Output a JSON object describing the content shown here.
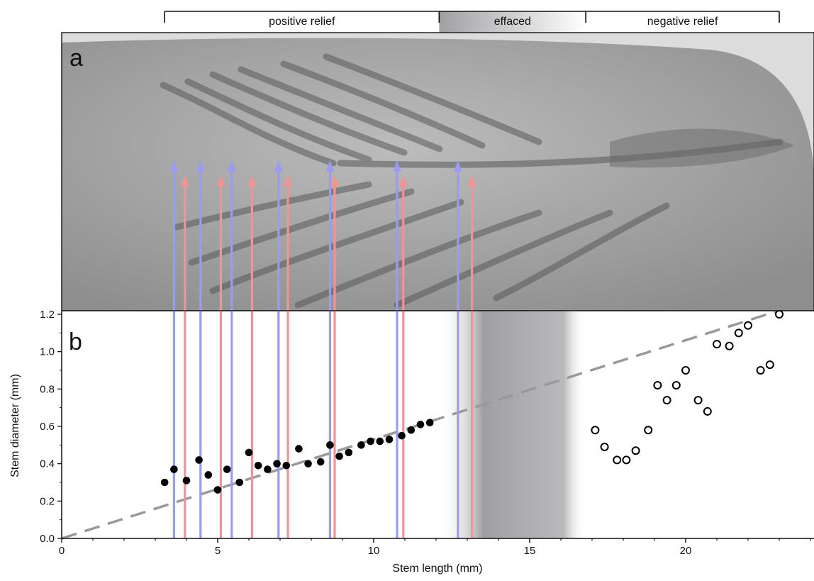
{
  "regions": [
    {
      "label": "positive relief",
      "x0": 3.3,
      "x1": 12.1
    },
    {
      "label": "effaced",
      "x0": 12.1,
      "x1": 16.8
    },
    {
      "label": "negative relief",
      "x0": 16.8,
      "x1": 23.0
    }
  ],
  "panel_a": {
    "letter": "a"
  },
  "photo_colors": {
    "light": "#d9d9d9",
    "mid": "#a6a6a6",
    "dark": "#5e5e5e"
  },
  "arrows": {
    "blue_color": "#9b9cf0",
    "red_color": "#f09494",
    "blue_x": [
      3.6,
      4.45,
      5.45,
      6.95,
      8.6,
      10.75,
      12.7
    ],
    "red_x": [
      3.95,
      5.1,
      6.1,
      7.25,
      8.75,
      10.95,
      13.15
    ]
  },
  "chart_data": {
    "type": "scatter",
    "panel_letter": "b",
    "xlabel": "Stem length (mm)",
    "ylabel": "Stem diameter (mm)",
    "xlim": [
      0,
      24
    ],
    "ylim": [
      0,
      1.2
    ],
    "xticks": [
      0,
      5,
      10,
      15,
      20
    ],
    "yticks": [
      0.0,
      0.2,
      0.4,
      0.6,
      0.8,
      1.0,
      1.2
    ],
    "xtick_labels": [
      "0",
      "5",
      "10",
      "15",
      "20"
    ],
    "ytick_labels": [
      "0.0",
      "0.2",
      "0.4",
      "0.6",
      "0.8",
      "1.0",
      "1.2"
    ],
    "shaded_region": {
      "x0": 12.1,
      "x1": 16.8,
      "color": "#9a9a9d"
    },
    "trend_line": {
      "x": [
        0,
        23
      ],
      "y": [
        0.0,
        1.22
      ],
      "style": "dashed",
      "color": "#999999"
    },
    "series": [
      {
        "marker": "filled-circle",
        "color": "#000000",
        "points": [
          [
            3.3,
            0.3
          ],
          [
            3.6,
            0.37
          ],
          [
            4.0,
            0.31
          ],
          [
            4.4,
            0.42
          ],
          [
            4.7,
            0.34
          ],
          [
            5.0,
            0.26
          ],
          [
            5.3,
            0.37
          ],
          [
            5.7,
            0.3
          ],
          [
            6.0,
            0.46
          ],
          [
            6.3,
            0.39
          ],
          [
            6.6,
            0.37
          ],
          [
            6.9,
            0.4
          ],
          [
            7.2,
            0.39
          ],
          [
            7.6,
            0.48
          ],
          [
            7.9,
            0.4
          ],
          [
            8.3,
            0.41
          ],
          [
            8.6,
            0.5
          ],
          [
            8.9,
            0.44
          ],
          [
            9.2,
            0.46
          ],
          [
            9.6,
            0.5
          ],
          [
            9.9,
            0.52
          ],
          [
            10.2,
            0.52
          ],
          [
            10.5,
            0.53
          ],
          [
            10.9,
            0.55
          ],
          [
            11.2,
            0.58
          ],
          [
            11.5,
            0.61
          ],
          [
            11.8,
            0.62
          ]
        ]
      },
      {
        "marker": "open-circle",
        "color": "#000000",
        "points": [
          [
            17.1,
            0.58
          ],
          [
            17.4,
            0.49
          ],
          [
            17.8,
            0.42
          ],
          [
            18.1,
            0.42
          ],
          [
            18.4,
            0.47
          ],
          [
            18.8,
            0.58
          ],
          [
            19.1,
            0.82
          ],
          [
            19.4,
            0.74
          ],
          [
            19.7,
            0.82
          ],
          [
            20.0,
            0.9
          ],
          [
            20.4,
            0.74
          ],
          [
            20.7,
            0.68
          ],
          [
            21.0,
            1.04
          ],
          [
            21.4,
            1.03
          ],
          [
            21.7,
            1.1
          ],
          [
            22.0,
            1.14
          ],
          [
            22.4,
            0.9
          ],
          [
            22.7,
            0.93
          ],
          [
            23.0,
            1.2
          ]
        ]
      }
    ]
  }
}
